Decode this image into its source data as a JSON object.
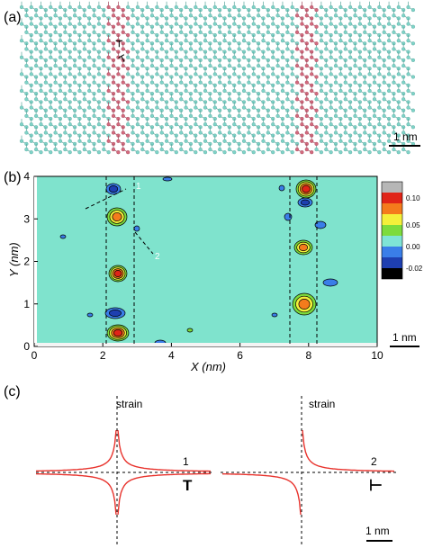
{
  "panel_a": {
    "label": "(a)",
    "scale_bar": "1 nm",
    "colors": {
      "lattice": "#7fd3c8",
      "lattice_stroke": "#5aa79d",
      "boundary": "#d36a7e",
      "boundary_stroke": "#a0485b"
    }
  },
  "panel_b": {
    "label": "(b)",
    "scale_bar": "1 nm",
    "x_axis_label": "X (nm)",
    "y_axis_label": "Y (nm)",
    "x_ticks": [
      "0",
      "2",
      "4",
      "6",
      "8",
      "10"
    ],
    "y_ticks": [
      "0",
      "1",
      "2",
      "3",
      "4"
    ],
    "annotations": [
      "1",
      "2"
    ],
    "colorbar_ticks": [
      "0.10",
      "0.05",
      "0.00",
      "-0.02"
    ],
    "colorbar_colors": [
      "#b6b6b6",
      "#e02418",
      "#f47b1c",
      "#f4f03a",
      "#7ddb3c",
      "#7fe4d6",
      "#3a7ee8",
      "#1e3fb0",
      "#000000"
    ],
    "colormap": {
      "background": "#7fe3cd",
      "contour": "#000000"
    }
  },
  "panel_c": {
    "label": "(c)",
    "scale_bar": "1 nm",
    "curve_color": "#e8332d",
    "plots": [
      {
        "title": "strain",
        "tag": "1",
        "symbol": "T"
      },
      {
        "title": "strain",
        "tag": "2",
        "symbol": "⊢"
      }
    ]
  }
}
